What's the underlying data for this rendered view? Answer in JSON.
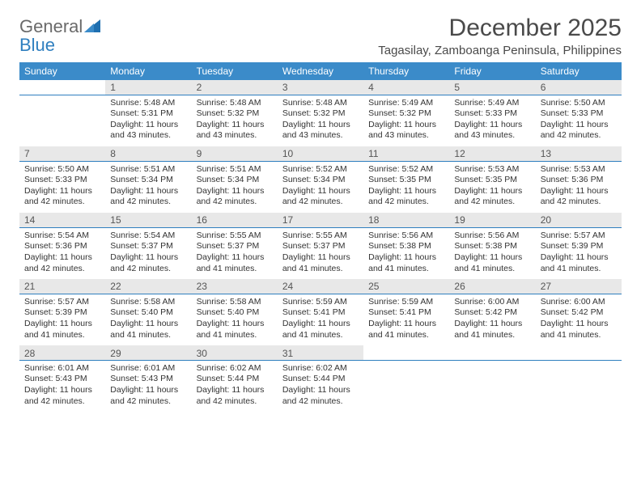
{
  "brand": {
    "word1": "General",
    "word2": "Blue"
  },
  "title": "December 2025",
  "location": "Tagasilay, Zamboanga Peninsula, Philippines",
  "colors": {
    "header_bg": "#3b8bc9",
    "header_fg": "#ffffff",
    "daynum_bg": "#e8e8e8",
    "daynum_border": "#2f7fbf",
    "text": "#333333",
    "title_color": "#4a4a4a",
    "logo_gray": "#6a6a6a",
    "logo_blue": "#2f7fbf"
  },
  "day_labels": [
    "Sunday",
    "Monday",
    "Tuesday",
    "Wednesday",
    "Thursday",
    "Friday",
    "Saturday"
  ],
  "weeks": [
    [
      null,
      {
        "n": "1",
        "sr": "5:48 AM",
        "ss": "5:31 PM",
        "dl": "11 hours and 43 minutes."
      },
      {
        "n": "2",
        "sr": "5:48 AM",
        "ss": "5:32 PM",
        "dl": "11 hours and 43 minutes."
      },
      {
        "n": "3",
        "sr": "5:48 AM",
        "ss": "5:32 PM",
        "dl": "11 hours and 43 minutes."
      },
      {
        "n": "4",
        "sr": "5:49 AM",
        "ss": "5:32 PM",
        "dl": "11 hours and 43 minutes."
      },
      {
        "n": "5",
        "sr": "5:49 AM",
        "ss": "5:33 PM",
        "dl": "11 hours and 43 minutes."
      },
      {
        "n": "6",
        "sr": "5:50 AM",
        "ss": "5:33 PM",
        "dl": "11 hours and 42 minutes."
      }
    ],
    [
      {
        "n": "7",
        "sr": "5:50 AM",
        "ss": "5:33 PM",
        "dl": "11 hours and 42 minutes."
      },
      {
        "n": "8",
        "sr": "5:51 AM",
        "ss": "5:34 PM",
        "dl": "11 hours and 42 minutes."
      },
      {
        "n": "9",
        "sr": "5:51 AM",
        "ss": "5:34 PM",
        "dl": "11 hours and 42 minutes."
      },
      {
        "n": "10",
        "sr": "5:52 AM",
        "ss": "5:34 PM",
        "dl": "11 hours and 42 minutes."
      },
      {
        "n": "11",
        "sr": "5:52 AM",
        "ss": "5:35 PM",
        "dl": "11 hours and 42 minutes."
      },
      {
        "n": "12",
        "sr": "5:53 AM",
        "ss": "5:35 PM",
        "dl": "11 hours and 42 minutes."
      },
      {
        "n": "13",
        "sr": "5:53 AM",
        "ss": "5:36 PM",
        "dl": "11 hours and 42 minutes."
      }
    ],
    [
      {
        "n": "14",
        "sr": "5:54 AM",
        "ss": "5:36 PM",
        "dl": "11 hours and 42 minutes."
      },
      {
        "n": "15",
        "sr": "5:54 AM",
        "ss": "5:37 PM",
        "dl": "11 hours and 42 minutes."
      },
      {
        "n": "16",
        "sr": "5:55 AM",
        "ss": "5:37 PM",
        "dl": "11 hours and 41 minutes."
      },
      {
        "n": "17",
        "sr": "5:55 AM",
        "ss": "5:37 PM",
        "dl": "11 hours and 41 minutes."
      },
      {
        "n": "18",
        "sr": "5:56 AM",
        "ss": "5:38 PM",
        "dl": "11 hours and 41 minutes."
      },
      {
        "n": "19",
        "sr": "5:56 AM",
        "ss": "5:38 PM",
        "dl": "11 hours and 41 minutes."
      },
      {
        "n": "20",
        "sr": "5:57 AM",
        "ss": "5:39 PM",
        "dl": "11 hours and 41 minutes."
      }
    ],
    [
      {
        "n": "21",
        "sr": "5:57 AM",
        "ss": "5:39 PM",
        "dl": "11 hours and 41 minutes."
      },
      {
        "n": "22",
        "sr": "5:58 AM",
        "ss": "5:40 PM",
        "dl": "11 hours and 41 minutes."
      },
      {
        "n": "23",
        "sr": "5:58 AM",
        "ss": "5:40 PM",
        "dl": "11 hours and 41 minutes."
      },
      {
        "n": "24",
        "sr": "5:59 AM",
        "ss": "5:41 PM",
        "dl": "11 hours and 41 minutes."
      },
      {
        "n": "25",
        "sr": "5:59 AM",
        "ss": "5:41 PM",
        "dl": "11 hours and 41 minutes."
      },
      {
        "n": "26",
        "sr": "6:00 AM",
        "ss": "5:42 PM",
        "dl": "11 hours and 41 minutes."
      },
      {
        "n": "27",
        "sr": "6:00 AM",
        "ss": "5:42 PM",
        "dl": "11 hours and 41 minutes."
      }
    ],
    [
      {
        "n": "28",
        "sr": "6:01 AM",
        "ss": "5:43 PM",
        "dl": "11 hours and 42 minutes."
      },
      {
        "n": "29",
        "sr": "6:01 AM",
        "ss": "5:43 PM",
        "dl": "11 hours and 42 minutes."
      },
      {
        "n": "30",
        "sr": "6:02 AM",
        "ss": "5:44 PM",
        "dl": "11 hours and 42 minutes."
      },
      {
        "n": "31",
        "sr": "6:02 AM",
        "ss": "5:44 PM",
        "dl": "11 hours and 42 minutes."
      },
      null,
      null,
      null
    ]
  ],
  "labels": {
    "sunrise": "Sunrise: ",
    "sunset": "Sunset: ",
    "daylight": "Daylight: "
  }
}
